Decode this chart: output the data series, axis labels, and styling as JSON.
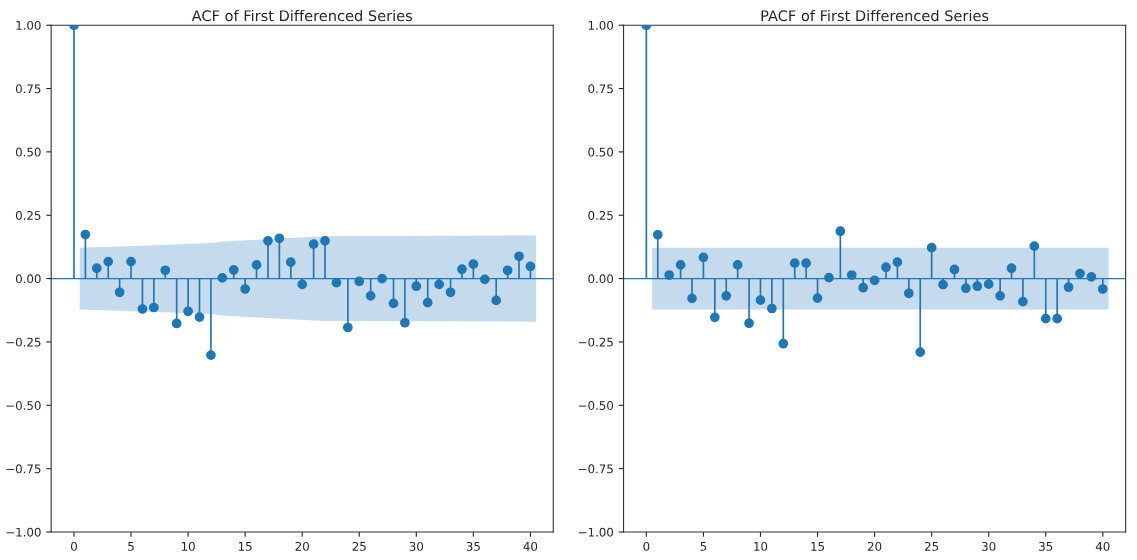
{
  "chart_data": [
    {
      "type": "lollipop",
      "title": "ACF of First Differenced Series",
      "grid": false,
      "legend": false,
      "xlim": [
        -2,
        42
      ],
      "xticks": [
        0,
        5,
        10,
        15,
        20,
        25,
        30,
        35,
        40
      ],
      "ylim": [
        -1,
        1
      ],
      "yticks": [
        {
          "value": -1,
          "label": "−1.00"
        },
        {
          "value": -0.75,
          "label": "−0.75"
        },
        {
          "value": -0.5,
          "label": "−0.50"
        },
        {
          "value": -0.25,
          "label": "−0.25"
        },
        {
          "value": 0,
          "label": "0.00"
        },
        {
          "value": 0.25,
          "label": "0.25"
        },
        {
          "value": 0.5,
          "label": "0.50"
        },
        {
          "value": 0.75,
          "label": "0.75"
        },
        {
          "value": 1,
          "label": "1.00"
        }
      ],
      "ref_lines": [
        {
          "axis": "y",
          "value": 0,
          "color": "#1f77b4"
        }
      ],
      "series": [
        {
          "type": "area",
          "color": "#c5dbed",
          "x": [
            0.5,
            6,
            12,
            13,
            18,
            22,
            40.5
          ],
          "values": [
            null,
            null,
            null,
            null,
            null,
            null,
            null
          ],
          "lower": [
            -0.122,
            -0.13,
            -0.14,
            -0.146,
            -0.158,
            -0.167,
            -0.17
          ],
          "upper": [
            0.122,
            0.13,
            0.14,
            0.146,
            0.158,
            0.167,
            0.17
          ]
        },
        {
          "marker": "circle",
          "color": "#1f77b4",
          "x": [
            0,
            1,
            2,
            3,
            4,
            5,
            6,
            7,
            8,
            9,
            10,
            11,
            12,
            13,
            14,
            15,
            16,
            17,
            18,
            19,
            20,
            21,
            22,
            23,
            24,
            25,
            26,
            27,
            28,
            29,
            30,
            31,
            32,
            33,
            34,
            35,
            36,
            37,
            38,
            39,
            40
          ],
          "values": [
            1,
            0.174,
            0.041,
            0.067,
            -0.054,
            0.067,
            -0.12,
            -0.114,
            0.033,
            -0.177,
            -0.129,
            -0.152,
            -0.302,
            0.003,
            0.034,
            -0.041,
            0.054,
            0.149,
            0.159,
            0.065,
            -0.023,
            0.136,
            0.149,
            -0.016,
            -0.193,
            -0.011,
            -0.068,
            0.0,
            -0.098,
            -0.174,
            -0.03,
            -0.095,
            -0.023,
            -0.054,
            0.037,
            0.057,
            -0.003,
            -0.086,
            0.033,
            0.088,
            0.048
          ]
        }
      ]
    },
    {
      "type": "lollipop",
      "title": "PACF of First Differenced Series",
      "grid": false,
      "legend": false,
      "xlim": [
        -2,
        42
      ],
      "xticks": [
        0,
        5,
        10,
        15,
        20,
        25,
        30,
        35,
        40
      ],
      "ylim": [
        -1,
        1
      ],
      "yticks": [
        {
          "value": -1,
          "label": "−1.00"
        },
        {
          "value": -0.75,
          "label": "−0.75"
        },
        {
          "value": -0.5,
          "label": "−0.50"
        },
        {
          "value": -0.25,
          "label": "−0.25"
        },
        {
          "value": 0,
          "label": "0.00"
        },
        {
          "value": 0.25,
          "label": "0.25"
        },
        {
          "value": 0.5,
          "label": "0.50"
        },
        {
          "value": 0.75,
          "label": "0.75"
        },
        {
          "value": 1,
          "label": "1.00"
        }
      ],
      "ref_lines": [
        {
          "axis": "y",
          "value": 0,
          "color": "#1f77b4"
        }
      ],
      "series": [
        {
          "type": "area",
          "color": "#c5dbed",
          "x": [
            0.5,
            40.5
          ],
          "values": [
            null,
            null
          ],
          "lower": [
            -0.122,
            -0.122
          ],
          "upper": [
            0.122,
            0.122
          ]
        },
        {
          "marker": "circle",
          "color": "#1f77b4",
          "x": [
            0,
            1,
            2,
            3,
            4,
            5,
            6,
            7,
            8,
            9,
            10,
            11,
            12,
            13,
            14,
            15,
            16,
            17,
            18,
            19,
            20,
            21,
            22,
            23,
            24,
            25,
            26,
            27,
            28,
            29,
            30,
            31,
            32,
            33,
            34,
            35,
            36,
            37,
            38,
            39,
            40
          ],
          "values": [
            1,
            0.173,
            0.014,
            0.054,
            -0.078,
            0.084,
            -0.153,
            -0.068,
            0.054,
            -0.176,
            -0.085,
            -0.118,
            -0.257,
            0.061,
            0.061,
            -0.077,
            0.004,
            0.187,
            0.014,
            -0.036,
            -0.007,
            0.045,
            0.065,
            -0.058,
            -0.29,
            0.122,
            -0.024,
            0.036,
            -0.038,
            -0.03,
            -0.022,
            -0.068,
            0.041,
            -0.091,
            0.128,
            -0.158,
            -0.158,
            -0.034,
            0.02,
            0.007,
            -0.041
          ]
        }
      ]
    }
  ]
}
